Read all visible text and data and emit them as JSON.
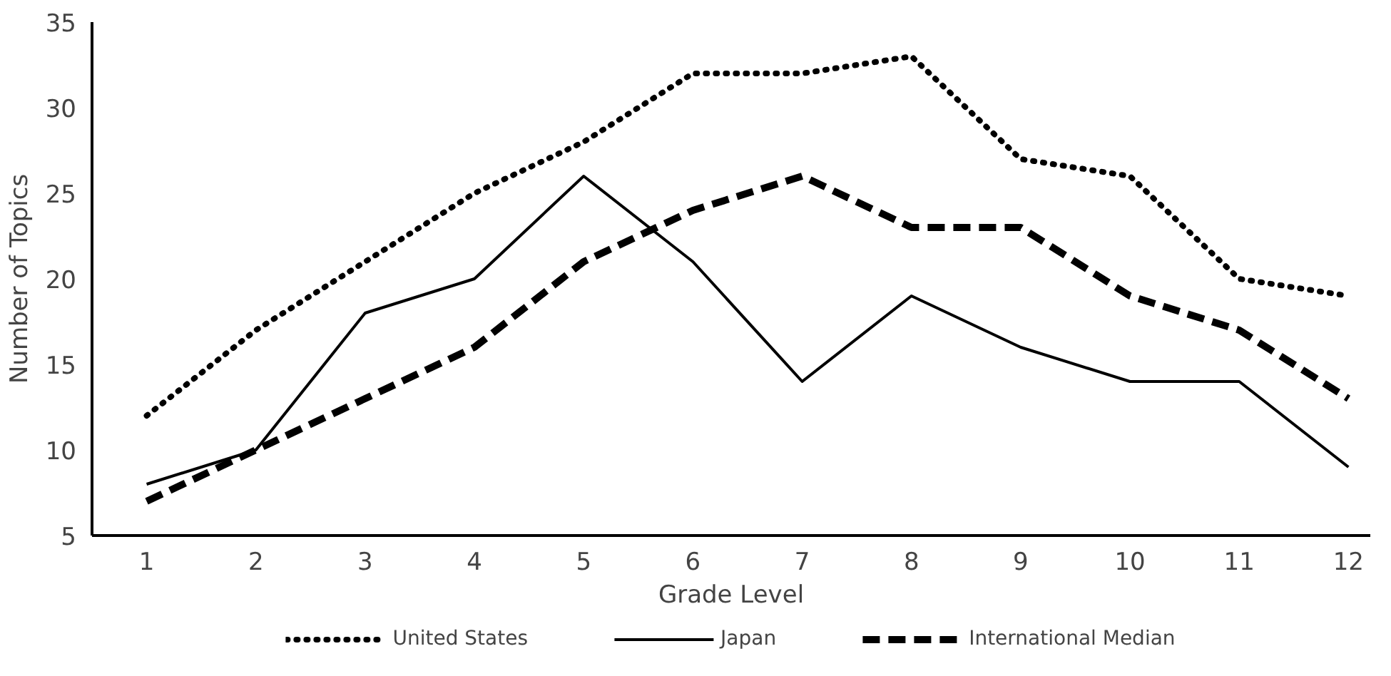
{
  "chart_data": {
    "type": "line",
    "xlabel": "Grade Level",
    "ylabel": "Number of Topics",
    "x": [
      1,
      2,
      3,
      4,
      5,
      6,
      7,
      8,
      9,
      10,
      11,
      12
    ],
    "xlim": [
      0.5,
      12.2
    ],
    "xticks": [
      1,
      2,
      3,
      4,
      5,
      6,
      7,
      8,
      9,
      10,
      11,
      12
    ],
    "ylim": [
      5,
      35
    ],
    "yticks": [
      5,
      10,
      15,
      20,
      25,
      30,
      35
    ],
    "grid": false,
    "legend": "bottom",
    "marker": "none",
    "series": [
      {
        "name": "United States",
        "color": "#000000",
        "line_style": "dotted",
        "values": [
          12,
          17,
          21,
          25,
          28,
          32,
          32,
          33,
          27,
          26,
          20,
          19
        ]
      },
      {
        "name": "Japan",
        "color": "#000000",
        "line_style": "solid",
        "values": [
          8,
          10,
          18,
          20,
          26,
          21,
          14,
          19,
          16,
          14,
          14,
          9
        ]
      },
      {
        "name": "International Median",
        "color": "#000000",
        "line_style": "dashed",
        "values": [
          7,
          10,
          13,
          16,
          21,
          24,
          26,
          23,
          23,
          19,
          17,
          13
        ]
      }
    ]
  }
}
